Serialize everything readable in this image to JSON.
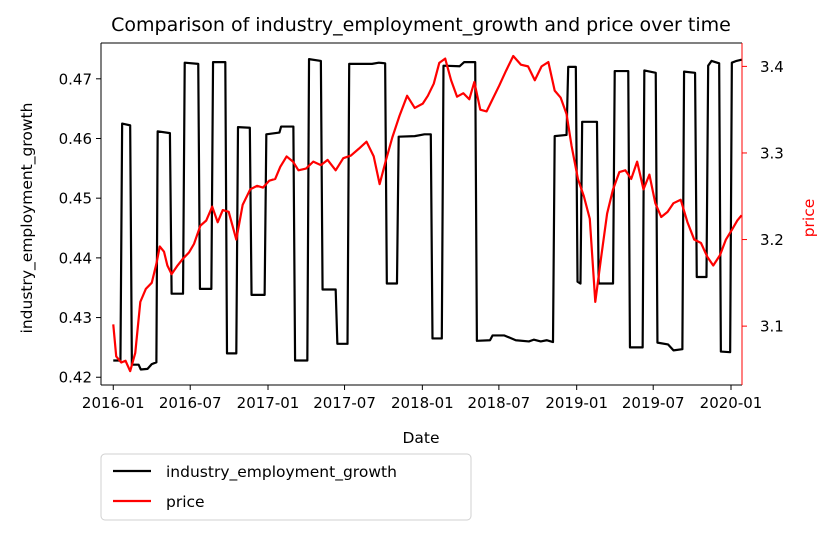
{
  "chart_data": {
    "type": "line",
    "title": "Comparison of industry_employment_growth and price over time",
    "xlabel": "Date",
    "ylabel_left": "industry_employment_growth",
    "ylabel_right": "price",
    "x_ticks": [
      "2016-01",
      "2016-07",
      "2017-01",
      "2017-07",
      "2018-01",
      "2018-07",
      "2019-01",
      "2019-07",
      "2020-01"
    ],
    "y_left_ticks": [
      "0.42",
      "0.43",
      "0.44",
      "0.45",
      "0.46",
      "0.47"
    ],
    "y_right_ticks": [
      "3.1",
      "3.2",
      "3.3",
      "3.4"
    ],
    "y_left_lim": [
      0.4187,
      0.476
    ],
    "y_right_lim": [
      3.032,
      3.427
    ],
    "x_range": [
      "2015-12-03",
      "2020-01-27"
    ],
    "legend_position": "below-left",
    "grid": false,
    "series": [
      {
        "name": "industry_employment_growth",
        "axis": "left",
        "color": "#000000",
        "points": [
          [
            "2016-01-01",
            0.4228
          ],
          [
            "2016-01-18",
            0.4228
          ],
          [
            "2016-01-22",
            0.4625
          ],
          [
            "2016-02-10",
            0.4622
          ],
          [
            "2016-02-14",
            0.4221
          ],
          [
            "2016-03-01",
            0.4221
          ],
          [
            "2016-03-06",
            0.4213
          ],
          [
            "2016-03-22",
            0.4214
          ],
          [
            "2016-04-01",
            0.4222
          ],
          [
            "2016-04-12",
            0.4225
          ],
          [
            "2016-04-15",
            0.4612
          ],
          [
            "2016-05-14",
            0.4609
          ],
          [
            "2016-05-18",
            0.434
          ],
          [
            "2016-06-14",
            0.434
          ],
          [
            "2016-06-18",
            0.4727
          ],
          [
            "2016-07-20",
            0.4725
          ],
          [
            "2016-07-24",
            0.4348
          ],
          [
            "2016-08-20",
            0.4348
          ],
          [
            "2016-08-24",
            0.4728
          ],
          [
            "2016-09-22",
            0.4728
          ],
          [
            "2016-09-26",
            0.424
          ],
          [
            "2016-10-18",
            0.424
          ],
          [
            "2016-10-22",
            0.4619
          ],
          [
            "2016-11-19",
            0.4618
          ],
          [
            "2016-11-23",
            0.4338
          ],
          [
            "2016-12-24",
            0.4338
          ],
          [
            "2016-12-28",
            0.4607
          ],
          [
            "2017-01-28",
            0.461
          ],
          [
            "2017-02-01",
            0.462
          ],
          [
            "2017-03-02",
            0.462
          ],
          [
            "2017-03-06",
            0.4228
          ],
          [
            "2017-04-04",
            0.4228
          ],
          [
            "2017-04-08",
            0.4733
          ],
          [
            "2017-05-06",
            0.473
          ],
          [
            "2017-05-10",
            0.4347
          ],
          [
            "2017-06-10",
            0.4347
          ],
          [
            "2017-06-14",
            0.4256
          ],
          [
            "2017-07-08",
            0.4256
          ],
          [
            "2017-07-12",
            0.4725
          ],
          [
            "2017-09-04",
            0.4725
          ],
          [
            "2017-09-20",
            0.4727
          ],
          [
            "2017-10-05",
            0.4726
          ],
          [
            "2017-10-09",
            0.4357
          ],
          [
            "2017-11-02",
            0.4357
          ],
          [
            "2017-11-06",
            0.4603
          ],
          [
            "2017-12-14",
            0.4604
          ],
          [
            "2018-01-06",
            0.4607
          ],
          [
            "2018-01-21",
            0.4607
          ],
          [
            "2018-01-25",
            0.4265
          ],
          [
            "2018-02-16",
            0.4265
          ],
          [
            "2018-02-20",
            0.4722
          ],
          [
            "2018-03-30",
            0.4721
          ],
          [
            "2018-04-10",
            0.4728
          ],
          [
            "2018-05-06",
            0.4728
          ],
          [
            "2018-05-10",
            0.4261
          ],
          [
            "2018-06-10",
            0.4262
          ],
          [
            "2018-06-16",
            0.427
          ],
          [
            "2018-07-14",
            0.427
          ],
          [
            "2018-08-10",
            0.4262
          ],
          [
            "2018-09-10",
            0.426
          ],
          [
            "2018-09-22",
            0.4263
          ],
          [
            "2018-10-08",
            0.426
          ],
          [
            "2018-10-22",
            0.4262
          ],
          [
            "2018-11-06",
            0.4259
          ],
          [
            "2018-11-10",
            0.4604
          ],
          [
            "2018-12-08",
            0.4606
          ],
          [
            "2018-12-12",
            0.472
          ],
          [
            "2018-12-30",
            0.472
          ],
          [
            "2019-01-03",
            0.436
          ],
          [
            "2019-01-10",
            0.4357
          ],
          [
            "2019-01-14",
            0.4628
          ],
          [
            "2019-02-18",
            0.4628
          ],
          [
            "2019-02-22",
            0.4357
          ],
          [
            "2019-03-28",
            0.4357
          ],
          [
            "2019-04-01",
            0.4713
          ],
          [
            "2019-05-03",
            0.4713
          ],
          [
            "2019-05-07",
            0.425
          ],
          [
            "2019-06-06",
            0.425
          ],
          [
            "2019-06-10",
            0.4714
          ],
          [
            "2019-07-07",
            0.471
          ],
          [
            "2019-07-11",
            0.4258
          ],
          [
            "2019-08-05",
            0.4255
          ],
          [
            "2019-08-18",
            0.4245
          ],
          [
            "2019-09-08",
            0.4247
          ],
          [
            "2019-09-12",
            0.4712
          ],
          [
            "2019-10-08",
            0.471
          ],
          [
            "2019-10-12",
            0.4368
          ],
          [
            "2019-11-04",
            0.4368
          ],
          [
            "2019-11-08",
            0.4722
          ],
          [
            "2019-11-16",
            0.473
          ],
          [
            "2019-12-04",
            0.4726
          ],
          [
            "2019-12-08",
            0.4243
          ],
          [
            "2019-12-30",
            0.4242
          ],
          [
            "2020-01-03",
            0.4727
          ],
          [
            "2020-01-14",
            0.473
          ],
          [
            "2020-01-26",
            0.4732
          ]
        ]
      },
      {
        "name": "price",
        "axis": "right",
        "color": "#ff0000",
        "points": [
          [
            "2016-01-01",
            3.102
          ],
          [
            "2016-01-08",
            3.065
          ],
          [
            "2016-01-20",
            3.058
          ],
          [
            "2016-01-30",
            3.06
          ],
          [
            "2016-02-10",
            3.048
          ],
          [
            "2016-02-22",
            3.069
          ],
          [
            "2016-03-05",
            3.128
          ],
          [
            "2016-03-18",
            3.143
          ],
          [
            "2016-04-01",
            3.15
          ],
          [
            "2016-04-12",
            3.172
          ],
          [
            "2016-04-20",
            3.192
          ],
          [
            "2016-04-30",
            3.186
          ],
          [
            "2016-05-08",
            3.17
          ],
          [
            "2016-05-18",
            3.16
          ],
          [
            "2016-06-01",
            3.17
          ],
          [
            "2016-06-14",
            3.178
          ],
          [
            "2016-06-28",
            3.185
          ],
          [
            "2016-07-10",
            3.195
          ],
          [
            "2016-07-25",
            3.216
          ],
          [
            "2016-08-08",
            3.222
          ],
          [
            "2016-08-22",
            3.238
          ],
          [
            "2016-09-04",
            3.22
          ],
          [
            "2016-09-16",
            3.234
          ],
          [
            "2016-09-30",
            3.232
          ],
          [
            "2016-10-18",
            3.2
          ],
          [
            "2016-11-02",
            3.24
          ],
          [
            "2016-11-20",
            3.258
          ],
          [
            "2016-12-06",
            3.262
          ],
          [
            "2016-12-20",
            3.26
          ],
          [
            "2017-01-04",
            3.268
          ],
          [
            "2017-01-18",
            3.27
          ],
          [
            "2017-01-30",
            3.284
          ],
          [
            "2017-02-14",
            3.296
          ],
          [
            "2017-03-01",
            3.29
          ],
          [
            "2017-03-14",
            3.28
          ],
          [
            "2017-04-01",
            3.282
          ],
          [
            "2017-04-18",
            3.29
          ],
          [
            "2017-05-06",
            3.286
          ],
          [
            "2017-05-22",
            3.292
          ],
          [
            "2017-06-10",
            3.28
          ],
          [
            "2017-06-28",
            3.294
          ],
          [
            "2017-07-16",
            3.297
          ],
          [
            "2017-08-04",
            3.305
          ],
          [
            "2017-08-22",
            3.313
          ],
          [
            "2017-09-08",
            3.296
          ],
          [
            "2017-09-22",
            3.264
          ],
          [
            "2017-10-06",
            3.29
          ],
          [
            "2017-10-22",
            3.318
          ],
          [
            "2017-11-08",
            3.343
          ],
          [
            "2017-11-26",
            3.366
          ],
          [
            "2017-12-14",
            3.352
          ],
          [
            "2018-01-02",
            3.357
          ],
          [
            "2018-01-14",
            3.366
          ],
          [
            "2018-01-28",
            3.38
          ],
          [
            "2018-02-10",
            3.404
          ],
          [
            "2018-02-24",
            3.409
          ],
          [
            "2018-03-10",
            3.384
          ],
          [
            "2018-03-24",
            3.365
          ],
          [
            "2018-04-08",
            3.369
          ],
          [
            "2018-04-22",
            3.362
          ],
          [
            "2018-05-04",
            3.382
          ],
          [
            "2018-05-18",
            3.35
          ],
          [
            "2018-06-02",
            3.348
          ],
          [
            "2018-06-16",
            3.362
          ],
          [
            "2018-07-02",
            3.378
          ],
          [
            "2018-07-18",
            3.395
          ],
          [
            "2018-08-04",
            3.412
          ],
          [
            "2018-08-22",
            3.402
          ],
          [
            "2018-09-08",
            3.4
          ],
          [
            "2018-09-24",
            3.384
          ],
          [
            "2018-10-10",
            3.4
          ],
          [
            "2018-10-26",
            3.405
          ],
          [
            "2018-11-10",
            3.372
          ],
          [
            "2018-11-24",
            3.364
          ],
          [
            "2018-12-08",
            3.345
          ],
          [
            "2018-12-20",
            3.308
          ],
          [
            "2019-01-04",
            3.27
          ],
          [
            "2019-01-18",
            3.25
          ],
          [
            "2019-02-01",
            3.224
          ],
          [
            "2019-02-14",
            3.128
          ],
          [
            "2019-02-28",
            3.18
          ],
          [
            "2019-03-14",
            3.23
          ],
          [
            "2019-03-28",
            3.258
          ],
          [
            "2019-04-12",
            3.278
          ],
          [
            "2019-04-26",
            3.28
          ],
          [
            "2019-05-10",
            3.27
          ],
          [
            "2019-05-24",
            3.29
          ],
          [
            "2019-06-08",
            3.258
          ],
          [
            "2019-06-22",
            3.275
          ],
          [
            "2019-07-06",
            3.242
          ],
          [
            "2019-07-20",
            3.226
          ],
          [
            "2019-08-04",
            3.232
          ],
          [
            "2019-08-18",
            3.242
          ],
          [
            "2019-09-04",
            3.246
          ],
          [
            "2019-09-20",
            3.22
          ],
          [
            "2019-10-06",
            3.2
          ],
          [
            "2019-10-22",
            3.196
          ],
          [
            "2019-11-06",
            3.18
          ],
          [
            "2019-11-20",
            3.17
          ],
          [
            "2019-12-06",
            3.182
          ],
          [
            "2019-12-20",
            3.2
          ],
          [
            "2020-01-04",
            3.212
          ],
          [
            "2020-01-16",
            3.222
          ],
          [
            "2020-01-26",
            3.228
          ]
        ]
      }
    ]
  }
}
